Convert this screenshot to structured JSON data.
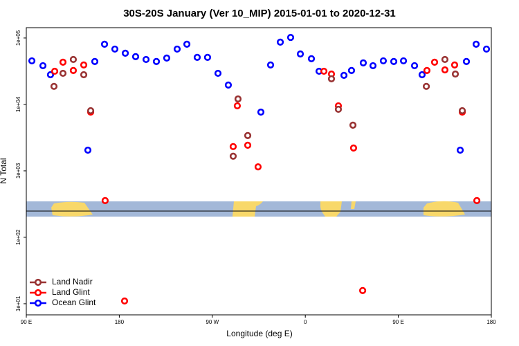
{
  "chart_data": {
    "type": "scatter",
    "title": "30S-20S January (Ver 10_MIP)   2015-01-01 to 2020-12-31",
    "x_label": "Longitude (deg E)",
    "y_label": "N Total",
    "log_y": true,
    "legend": "bottom-left",
    "xlim": [
      90,
      540
    ],
    "xticks": [
      {
        "value": 90,
        "label": "90 E"
      },
      {
        "value": 180,
        "label": "180"
      },
      {
        "value": 270,
        "label": "90 W"
      },
      {
        "value": 360,
        "label": "0"
      },
      {
        "value": 450,
        "label": "90 E"
      },
      {
        "value": 540,
        "label": "180"
      }
    ],
    "ylim": [
      6.8,
      143000
    ],
    "yticks": [
      {
        "value": 10,
        "label": "1e+01"
      },
      {
        "value": 100,
        "label": "1e+02"
      },
      {
        "value": 1000,
        "label": "1e+03"
      },
      {
        "value": 10000,
        "label": "1e+04"
      },
      {
        "value": 100000,
        "label": "1e+05"
      }
    ],
    "series": [
      {
        "name": "Land Nadir",
        "color": "#993333",
        "x": [
          116.8,
          125.5,
          135.5,
          145.6,
          152.3,
          290.2,
          294.9,
          304.3,
          385.3,
          392.0,
          406.1,
          477.1,
          495.1,
          505.2,
          511.9
        ],
        "values": [
          18700,
          29400,
          47500,
          28000,
          8050,
          1660,
          12100,
          3400,
          24300,
          8450,
          4870,
          18700,
          47500,
          28700,
          8050
        ]
      },
      {
        "name": "Land Glint",
        "color": "#ff0000",
        "x": [
          117.5,
          125.5,
          135.5,
          145.6,
          152.3,
          166.3,
          185.1,
          290.2,
          294.2,
          304.3,
          314.3,
          378.0,
          385.3,
          392.0,
          406.7,
          415.5,
          477.7,
          485.1,
          495.1,
          504.5,
          511.9,
          526.0
        ],
        "values": [
          31600,
          43200,
          32400,
          39300,
          7670,
          357,
          11.0,
          2320,
          9530,
          2430,
          1150,
          31600,
          28700,
          9530,
          2210,
          15.8,
          32400,
          43200,
          33100,
          39300,
          7670,
          357
        ]
      },
      {
        "name": "Ocean Glint",
        "color": "#0000ff",
        "x": [
          95.4,
          106.1,
          113.4,
          149.6,
          156.3,
          165.7,
          175.7,
          185.8,
          195.8,
          205.9,
          215.9,
          225.9,
          236.0,
          245.4,
          255.4,
          265.4,
          275.5,
          285.5,
          317.0,
          326.4,
          335.8,
          345.8,
          355.2,
          365.9,
          373.3,
          397.4,
          404.7,
          416.1,
          425.5,
          435.5,
          445.6,
          455.0,
          465.7,
          473.0,
          509.9,
          515.9,
          525.3,
          535.3
        ],
        "values": [
          45300,
          38300,
          28000,
          2050,
          44300,
          80600,
          68100,
          59000,
          52400,
          47500,
          44300,
          49900,
          68100,
          80600,
          51100,
          51100,
          29400,
          19600,
          7670,
          39300,
          86600,
          102000,
          57500,
          48700,
          31600,
          27400,
          32400,
          42200,
          38300,
          45300,
          44300,
          45300,
          38300,
          28000,
          2050,
          44300,
          80600,
          68100
        ]
      }
    ]
  }
}
